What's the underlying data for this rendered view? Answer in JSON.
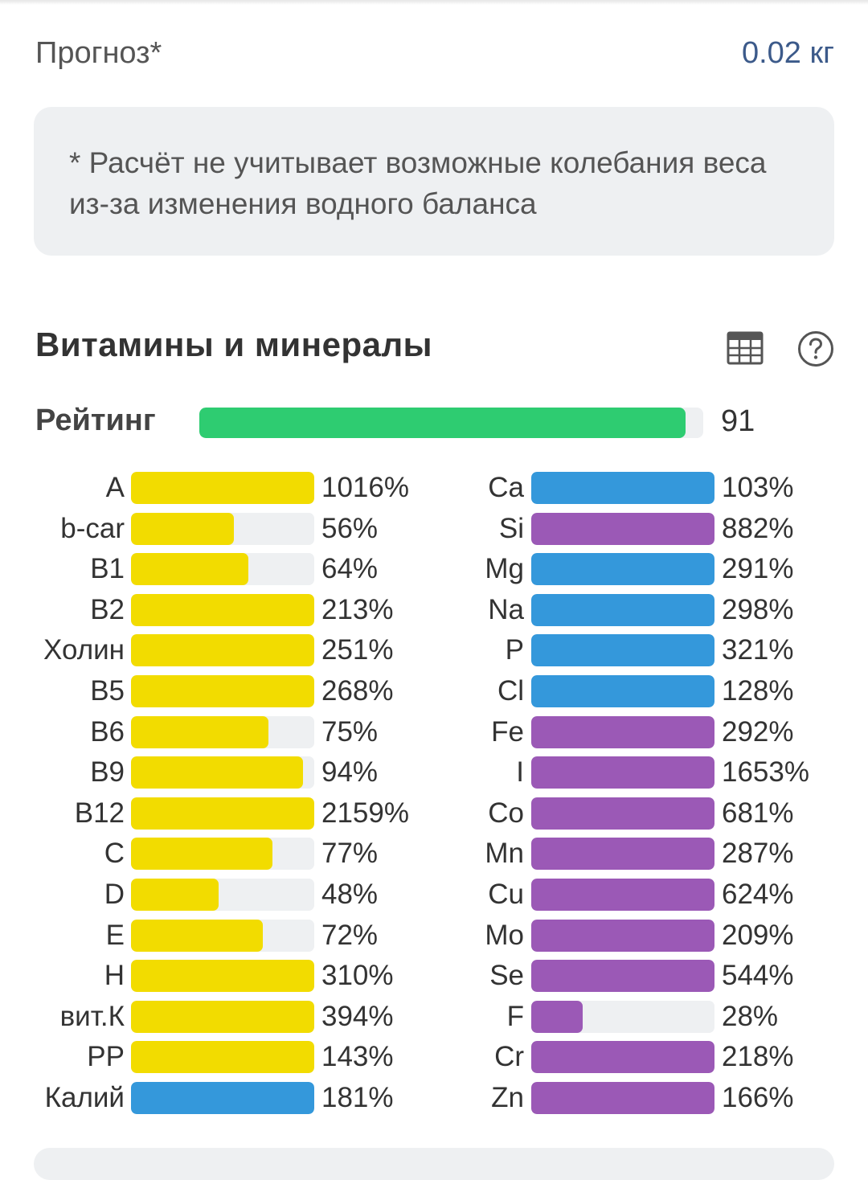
{
  "forecast": {
    "label": "Прогноз*",
    "value": "0.02 кг"
  },
  "note": "* Расчёт не учитывает возможные колебания веса из-за изменения водного баланса",
  "section": {
    "title": "Витамины и минералы",
    "table_icon": "table-icon",
    "help_icon": "help-icon"
  },
  "rating": {
    "label": "Рейтинг",
    "value": "91",
    "level": 91
  },
  "colors": {
    "rating": "#2ecc71",
    "vitamin": "#f2dc00",
    "mineral_blue": "#3498db",
    "mineral_purple": "#9b59b6",
    "track": "#eef0f2"
  },
  "vitamins": [
    {
      "name": "A",
      "pct": "1016%",
      "fill": 100,
      "color": "#f2dc00"
    },
    {
      "name": "b-car",
      "pct": "56%",
      "fill": 56,
      "color": "#f2dc00"
    },
    {
      "name": "B1",
      "pct": "64%",
      "fill": 64,
      "color": "#f2dc00"
    },
    {
      "name": "B2",
      "pct": "213%",
      "fill": 100,
      "color": "#f2dc00"
    },
    {
      "name": "Холин",
      "pct": "251%",
      "fill": 100,
      "color": "#f2dc00"
    },
    {
      "name": "B5",
      "pct": "268%",
      "fill": 100,
      "color": "#f2dc00"
    },
    {
      "name": "B6",
      "pct": "75%",
      "fill": 75,
      "color": "#f2dc00"
    },
    {
      "name": "B9",
      "pct": "94%",
      "fill": 94,
      "color": "#f2dc00"
    },
    {
      "name": "B12",
      "pct": "2159%",
      "fill": 100,
      "color": "#f2dc00"
    },
    {
      "name": "C",
      "pct": "77%",
      "fill": 77,
      "color": "#f2dc00"
    },
    {
      "name": "D",
      "pct": "48%",
      "fill": 48,
      "color": "#f2dc00"
    },
    {
      "name": "E",
      "pct": "72%",
      "fill": 72,
      "color": "#f2dc00"
    },
    {
      "name": "H",
      "pct": "310%",
      "fill": 100,
      "color": "#f2dc00"
    },
    {
      "name": "вит.К",
      "pct": "394%",
      "fill": 100,
      "color": "#f2dc00"
    },
    {
      "name": "PP",
      "pct": "143%",
      "fill": 100,
      "color": "#f2dc00"
    },
    {
      "name": "Калий",
      "pct": "181%",
      "fill": 100,
      "color": "#3498db"
    }
  ],
  "minerals": [
    {
      "name": "Ca",
      "pct": "103%",
      "fill": 100,
      "color": "#3498db"
    },
    {
      "name": "Si",
      "pct": "882%",
      "fill": 100,
      "color": "#9b59b6"
    },
    {
      "name": "Mg",
      "pct": "291%",
      "fill": 100,
      "color": "#3498db"
    },
    {
      "name": "Na",
      "pct": "298%",
      "fill": 100,
      "color": "#3498db"
    },
    {
      "name": "P",
      "pct": "321%",
      "fill": 100,
      "color": "#3498db"
    },
    {
      "name": "Cl",
      "pct": "128%",
      "fill": 100,
      "color": "#3498db"
    },
    {
      "name": "Fe",
      "pct": "292%",
      "fill": 100,
      "color": "#9b59b6"
    },
    {
      "name": "I",
      "pct": "1653%",
      "fill": 100,
      "color": "#9b59b6"
    },
    {
      "name": "Co",
      "pct": "681%",
      "fill": 100,
      "color": "#9b59b6"
    },
    {
      "name": "Mn",
      "pct": "287%",
      "fill": 100,
      "color": "#9b59b6"
    },
    {
      "name": "Cu",
      "pct": "624%",
      "fill": 100,
      "color": "#9b59b6"
    },
    {
      "name": "Mo",
      "pct": "209%",
      "fill": 100,
      "color": "#9b59b6"
    },
    {
      "name": "Se",
      "pct": "544%",
      "fill": 100,
      "color": "#9b59b6"
    },
    {
      "name": "F",
      "pct": "28%",
      "fill": 28,
      "color": "#9b59b6"
    },
    {
      "name": "Cr",
      "pct": "218%",
      "fill": 100,
      "color": "#9b59b6"
    },
    {
      "name": "Zn",
      "pct": "166%",
      "fill": 100,
      "color": "#9b59b6"
    }
  ]
}
